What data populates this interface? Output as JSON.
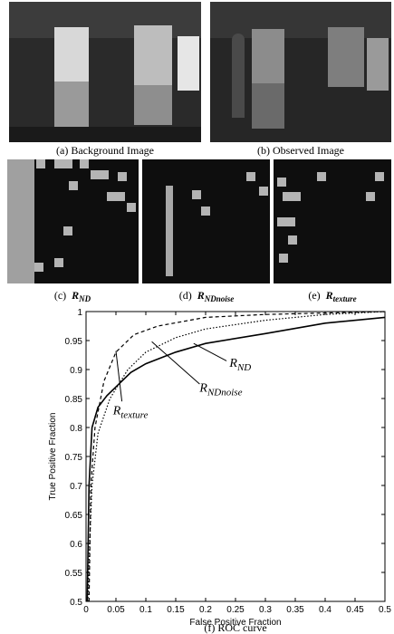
{
  "figure": {
    "panels": [
      {
        "caption": "(a) Background Image"
      },
      {
        "caption": "(b) Observed Image"
      }
    ],
    "maps": [
      {
        "prefix": "(c)",
        "main": "R",
        "sub": "ND"
      },
      {
        "prefix": "(d)",
        "main": "R",
        "sub": "NDnoise"
      },
      {
        "prefix": "(e)",
        "main": "R",
        "sub": "texture"
      }
    ],
    "caption": "(f) ROC curve"
  },
  "chart_data": {
    "type": "line",
    "xlabel": "False Positive Fraction",
    "ylabel": "True Positive Fraction",
    "xlim": [
      0,
      0.5
    ],
    "ylim": [
      0.5,
      1
    ],
    "xticks": [
      0,
      0.05,
      0.1,
      0.15,
      0.2,
      0.25,
      0.3,
      0.35,
      0.4,
      0.45,
      0.5
    ],
    "yticks": [
      0.5,
      0.55,
      0.6,
      0.65,
      0.7,
      0.75,
      0.8,
      0.85,
      0.9,
      0.95,
      1
    ],
    "series": [
      {
        "label": {
          "main": "R",
          "sub": "ND"
        },
        "style": "solid",
        "color": "#000000",
        "x": [
          0.002,
          0.005,
          0.01,
          0.02,
          0.035,
          0.05,
          0.075,
          0.1,
          0.15,
          0.2,
          0.3,
          0.4,
          0.5
        ],
        "y": [
          0.5,
          0.7,
          0.8,
          0.835,
          0.855,
          0.87,
          0.895,
          0.91,
          0.93,
          0.945,
          0.962,
          0.98,
          0.99
        ]
      },
      {
        "label": {
          "main": "R",
          "sub": "NDnoise"
        },
        "style": "dotted",
        "color": "#000000",
        "x": [
          0.003,
          0.006,
          0.01,
          0.02,
          0.04,
          0.07,
          0.1,
          0.15,
          0.2,
          0.3,
          0.4,
          0.5
        ],
        "y": [
          0.5,
          0.6,
          0.7,
          0.79,
          0.85,
          0.9,
          0.93,
          0.955,
          0.97,
          0.985,
          0.995,
          1
        ]
      },
      {
        "label": {
          "main": "R",
          "sub": "texture"
        },
        "style": "dashed",
        "color": "#000000",
        "x": [
          0.005,
          0.008,
          0.015,
          0.03,
          0.05,
          0.08,
          0.12,
          0.2,
          0.3,
          0.5
        ],
        "y": [
          0.5,
          0.7,
          0.8,
          0.88,
          0.93,
          0.96,
          0.975,
          0.99,
          0.995,
          1
        ]
      }
    ]
  }
}
